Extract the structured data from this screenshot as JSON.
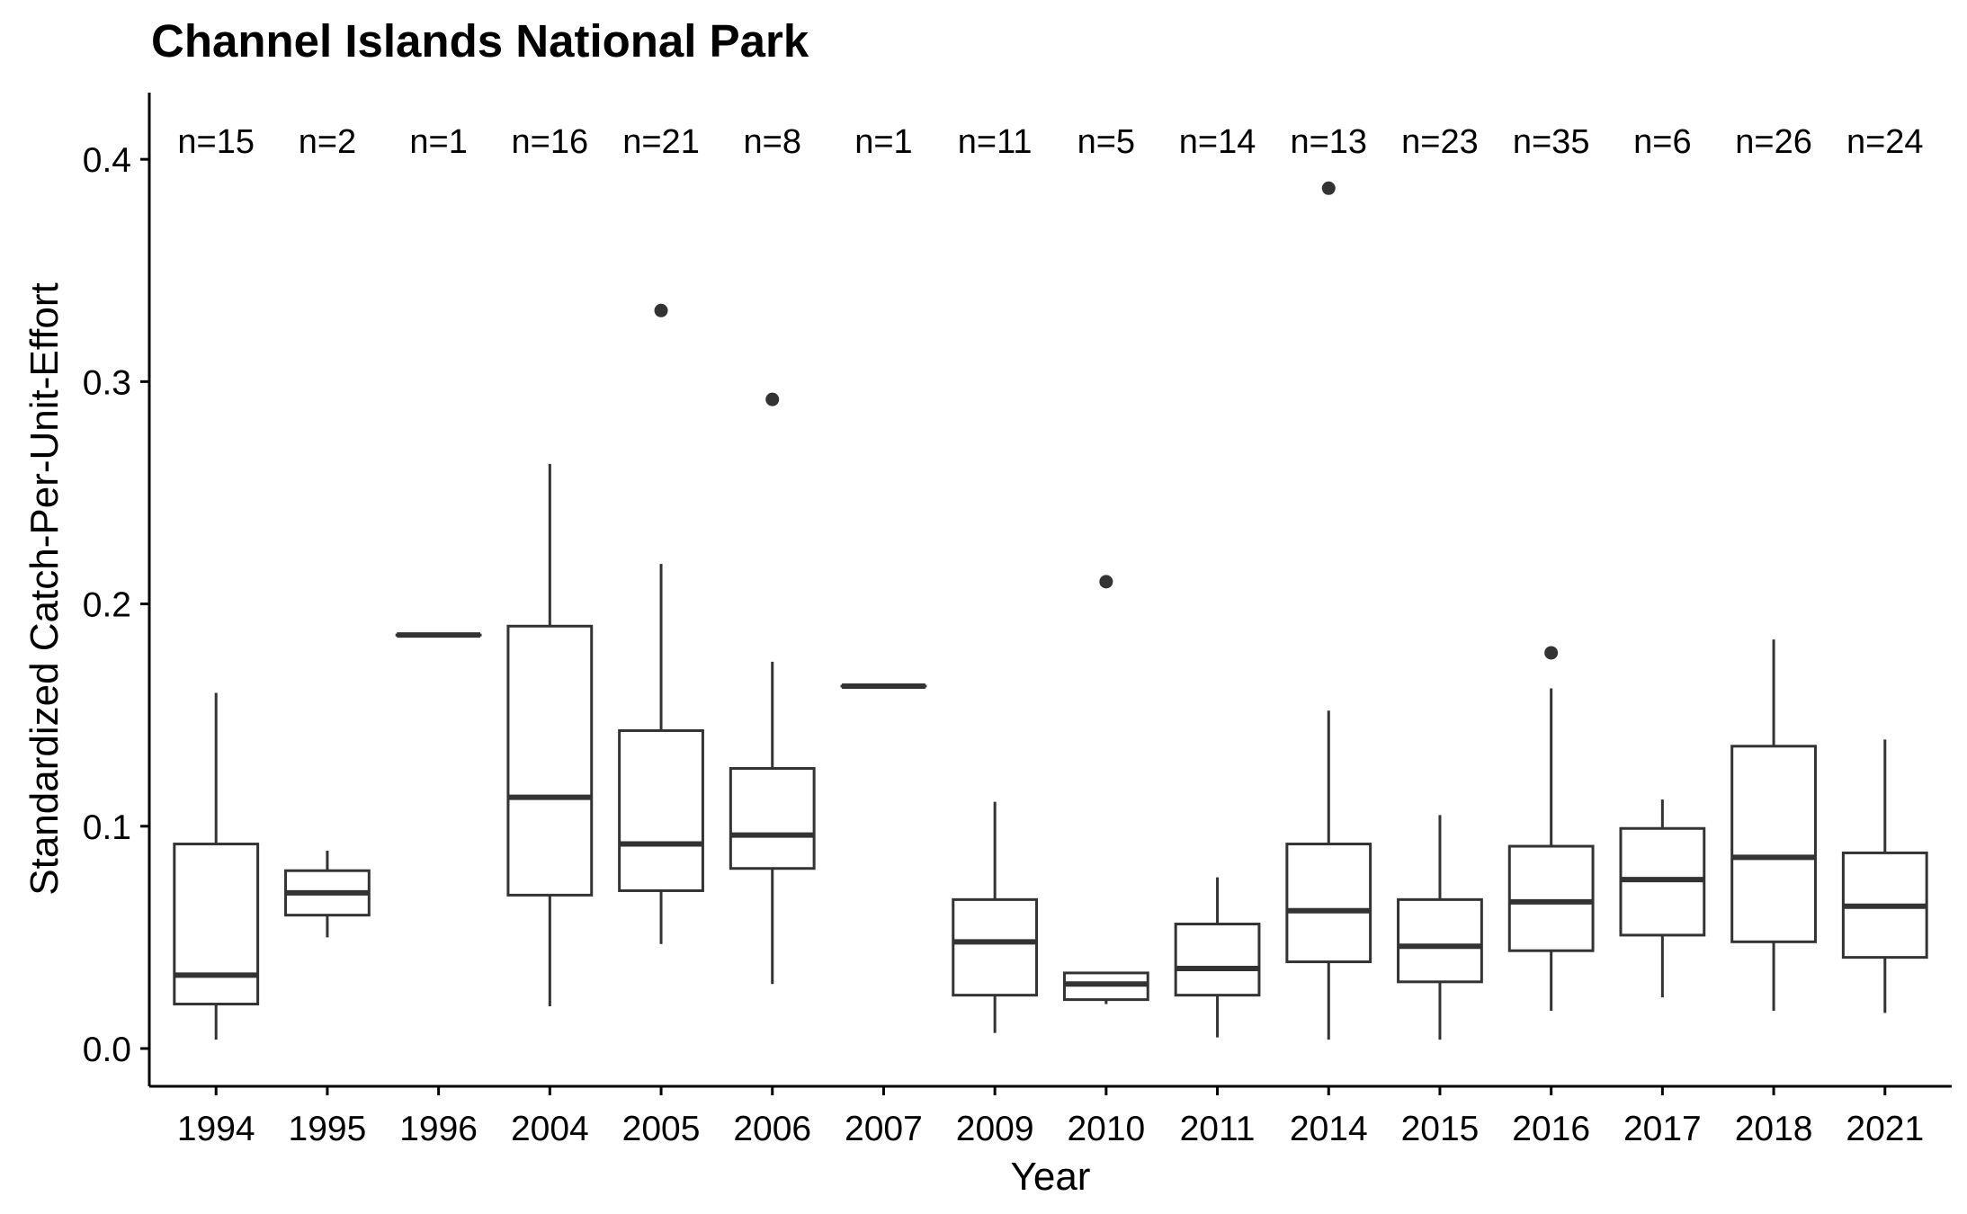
{
  "chart_data": {
    "type": "boxplot",
    "title": "Channel Islands National Park",
    "xlabel": "Year",
    "ylabel": "Standardized Catch-Per-Unit-Effort",
    "ylim": [
      -0.017,
      0.43
    ],
    "yticks": [
      "0.0",
      "0.1",
      "0.2",
      "0.3",
      "0.4"
    ],
    "categories": [
      "1994",
      "1995",
      "1996",
      "2004",
      "2005",
      "2006",
      "2007",
      "2009",
      "2010",
      "2011",
      "2014",
      "2015",
      "2016",
      "2017",
      "2018",
      "2021"
    ],
    "n_labels": [
      "n=15",
      "n=2",
      "n=1",
      "n=16",
      "n=21",
      "n=8",
      "n=1",
      "n=11",
      "n=5",
      "n=14",
      "n=13",
      "n=23",
      "n=35",
      "n=6",
      "n=26",
      "n=24"
    ],
    "boxes": [
      {
        "year": "1994",
        "whisker_low": 0.004,
        "q1": 0.02,
        "median": 0.033,
        "q3": 0.092,
        "whisker_high": 0.16,
        "outliers": []
      },
      {
        "year": "1995",
        "whisker_low": 0.05,
        "q1": 0.06,
        "median": 0.07,
        "q3": 0.08,
        "whisker_high": 0.089,
        "outliers": []
      },
      {
        "year": "1996",
        "whisker_low": 0.186,
        "q1": 0.186,
        "median": 0.186,
        "q3": 0.186,
        "whisker_high": 0.186,
        "outliers": []
      },
      {
        "year": "2004",
        "whisker_low": 0.019,
        "q1": 0.069,
        "median": 0.113,
        "q3": 0.19,
        "whisker_high": 0.263,
        "outliers": []
      },
      {
        "year": "2005",
        "whisker_low": 0.047,
        "q1": 0.071,
        "median": 0.092,
        "q3": 0.143,
        "whisker_high": 0.218,
        "outliers": [
          0.332
        ]
      },
      {
        "year": "2006",
        "whisker_low": 0.029,
        "q1": 0.081,
        "median": 0.096,
        "q3": 0.126,
        "whisker_high": 0.174,
        "outliers": [
          0.292
        ]
      },
      {
        "year": "2007",
        "whisker_low": 0.163,
        "q1": 0.163,
        "median": 0.163,
        "q3": 0.163,
        "whisker_high": 0.163,
        "outliers": []
      },
      {
        "year": "2009",
        "whisker_low": 0.007,
        "q1": 0.024,
        "median": 0.048,
        "q3": 0.067,
        "whisker_high": 0.111,
        "outliers": []
      },
      {
        "year": "2010",
        "whisker_low": 0.02,
        "q1": 0.022,
        "median": 0.029,
        "q3": 0.034,
        "whisker_high": 0.034,
        "outliers": [
          0.21
        ]
      },
      {
        "year": "2011",
        "whisker_low": 0.005,
        "q1": 0.024,
        "median": 0.036,
        "q3": 0.056,
        "whisker_high": 0.077,
        "outliers": []
      },
      {
        "year": "2014",
        "whisker_low": 0.004,
        "q1": 0.039,
        "median": 0.062,
        "q3": 0.092,
        "whisker_high": 0.152,
        "outliers": [
          0.387
        ]
      },
      {
        "year": "2015",
        "whisker_low": 0.004,
        "q1": 0.03,
        "median": 0.046,
        "q3": 0.067,
        "whisker_high": 0.105,
        "outliers": []
      },
      {
        "year": "2016",
        "whisker_low": 0.017,
        "q1": 0.044,
        "median": 0.066,
        "q3": 0.091,
        "whisker_high": 0.162,
        "outliers": [
          0.178
        ]
      },
      {
        "year": "2017",
        "whisker_low": 0.023,
        "q1": 0.051,
        "median": 0.076,
        "q3": 0.099,
        "whisker_high": 0.112,
        "outliers": []
      },
      {
        "year": "2018",
        "whisker_low": 0.017,
        "q1": 0.048,
        "median": 0.086,
        "q3": 0.136,
        "whisker_high": 0.184,
        "outliers": []
      },
      {
        "year": "2021",
        "whisker_low": 0.016,
        "q1": 0.041,
        "median": 0.064,
        "q3": 0.088,
        "whisker_high": 0.139,
        "outliers": []
      }
    ],
    "grid": false,
    "legend": "none",
    "colors": {
      "box_stroke": "#333333",
      "outlier": "#333333",
      "axis": "#000000"
    }
  }
}
